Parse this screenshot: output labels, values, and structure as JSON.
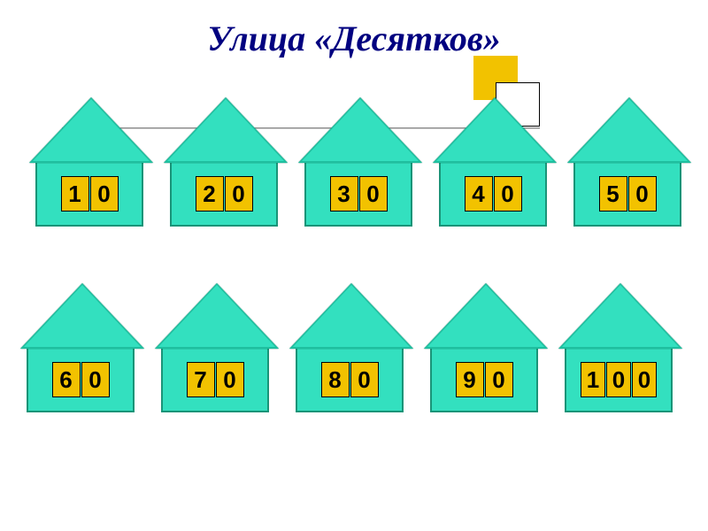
{
  "title": "Улица «Десятков»",
  "colors": {
    "background": "#ffffff",
    "title_color": "#000080",
    "house_fill": "#33e0bf",
    "house_border": "#1a9478",
    "roof_shadow": "#1fbf9f",
    "cell_bg": "#f2c200",
    "cell_border": "#000000",
    "text_color": "#000000"
  },
  "typography": {
    "title_fontsize": 40,
    "title_style": "bold italic",
    "title_family": "Times New Roman",
    "cell_fontsize": 26,
    "cell_family": "Arial"
  },
  "houses": {
    "row1": [
      {
        "digits": [
          "1",
          "0"
        ]
      },
      {
        "digits": [
          "2",
          "0"
        ]
      },
      {
        "digits": [
          "3",
          "0"
        ]
      },
      {
        "digits": [
          "4",
          "0"
        ]
      },
      {
        "digits": [
          "5",
          "0"
        ]
      }
    ],
    "row2": [
      {
        "digits": [
          "6",
          "0"
        ]
      },
      {
        "digits": [
          "7",
          "0"
        ]
      },
      {
        "digits": [
          "8",
          "0"
        ]
      },
      {
        "digits": [
          "9",
          "0"
        ]
      },
      {
        "digits": [
          "1",
          "0",
          "0"
        ]
      }
    ]
  }
}
